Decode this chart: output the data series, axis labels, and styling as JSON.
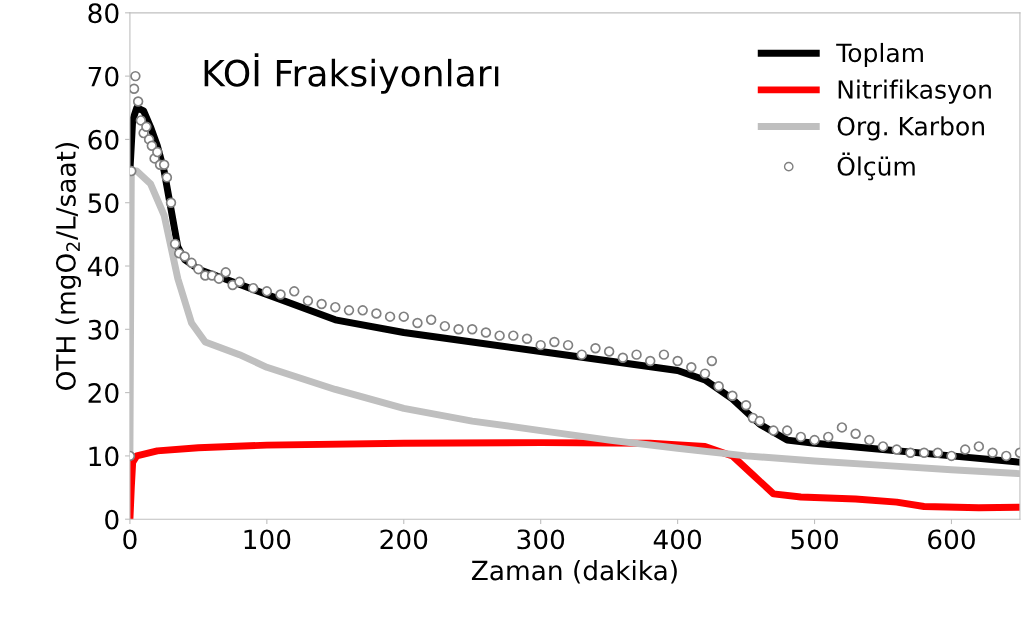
{
  "chart_data": {
    "type": "line",
    "title": "KOİ Fraksiyonları",
    "xlabel": "Zaman (dakika)",
    "ylabel": "OTH (mgO$_{2}$/L/saat)",
    "xlim": [
      0,
      650
    ],
    "xticks": [
      0,
      100,
      200,
      300,
      400,
      500,
      600
    ],
    "ylim": [
      0,
      80
    ],
    "yticks": [
      0,
      10,
      20,
      30,
      40,
      50,
      60,
      70,
      80
    ],
    "grid": false,
    "legend": "top right",
    "marker": "none",
    "line_style": "solid",
    "series": [
      {
        "name": "Toplam",
        "color": "#000000",
        "x": [
          0,
          2,
          5,
          10,
          15,
          20,
          25,
          30,
          35,
          40,
          50,
          75,
          100,
          150,
          200,
          250,
          300,
          350,
          400,
          420,
          440,
          460,
          480,
          500,
          550,
          600,
          650
        ],
        "values": [
          55,
          63,
          65,
          64.5,
          62,
          59,
          55,
          49,
          43,
          41,
          39.5,
          37.5,
          35.5,
          31.5,
          29.5,
          28,
          26.5,
          25,
          23.5,
          22,
          19,
          15,
          12.5,
          12,
          11,
          10,
          9
        ]
      },
      {
        "name": "Nitrifikasyon",
        "color": "#ff0000",
        "x": [
          0,
          1,
          2,
          5,
          20,
          50,
          100,
          200,
          300,
          380,
          420,
          440,
          455,
          470,
          490,
          530,
          560,
          580,
          620,
          650
        ],
        "values": [
          0,
          5,
          9,
          10,
          10.8,
          11.3,
          11.7,
          12,
          12.1,
          12,
          11.5,
          10,
          7,
          4,
          3.5,
          3.2,
          2.7,
          2,
          1.8,
          1.9
        ]
      },
      {
        "name": "Org. Karbon",
        "color": "#bfbfbf",
        "x": [
          0,
          1,
          5,
          15,
          25,
          35,
          45,
          55,
          80,
          100,
          150,
          200,
          250,
          300,
          350,
          400,
          450,
          500,
          550,
          600,
          650
        ],
        "values": [
          10,
          55,
          55,
          53,
          48,
          38,
          31,
          28,
          26,
          24,
          20.5,
          17.5,
          15.5,
          14,
          12.5,
          11.2,
          10,
          9.2,
          8.5,
          7.8,
          7.2
        ]
      },
      {
        "name": "Ölçüm",
        "type": "scatter",
        "marker": "circle",
        "color": "#808080",
        "x": [
          0,
          1,
          3,
          4,
          6,
          8,
          10,
          12,
          14,
          16,
          18,
          20,
          22,
          25,
          27,
          30,
          33,
          36,
          40,
          45,
          50,
          55,
          60,
          65,
          70,
          75,
          80,
          90,
          100,
          110,
          120,
          130,
          140,
          150,
          160,
          170,
          180,
          190,
          200,
          210,
          220,
          230,
          240,
          250,
          260,
          270,
          280,
          290,
          300,
          310,
          320,
          330,
          340,
          350,
          360,
          370,
          380,
          390,
          400,
          410,
          420,
          425,
          430,
          440,
          450,
          455,
          460,
          470,
          480,
          490,
          500,
          510,
          520,
          530,
          540,
          550,
          560,
          570,
          580,
          590,
          600,
          610,
          620,
          630,
          640,
          650
        ],
        "values": [
          10,
          55,
          68,
          70,
          66,
          63,
          61,
          62,
          60,
          59,
          57,
          58,
          56,
          56,
          54,
          50,
          43.5,
          42,
          41.5,
          40.5,
          39.5,
          38.5,
          38.5,
          38,
          39,
          37,
          37.5,
          36.5,
          36,
          35.5,
          36,
          34.5,
          34,
          33.5,
          33,
          33,
          32.5,
          32,
          32,
          31,
          31.5,
          30.5,
          30,
          30,
          29.5,
          29,
          29,
          28.5,
          27.5,
          28,
          27.5,
          26,
          27,
          26.5,
          25.5,
          26,
          25,
          26,
          25,
          24,
          23,
          25,
          21,
          19.5,
          18,
          16,
          15.5,
          14,
          14,
          13,
          12.5,
          13,
          14.5,
          13.5,
          12.5,
          11.5,
          11,
          10.5,
          10.5,
          10.5,
          10,
          11,
          11.5,
          10.5,
          10,
          10.5
        ]
      }
    ]
  }
}
